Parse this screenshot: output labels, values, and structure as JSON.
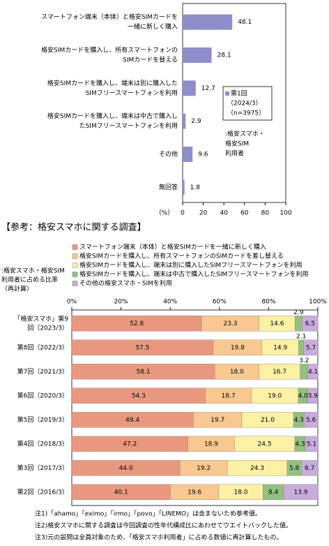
{
  "chart_data": [
    {
      "type": "hbar",
      "categories": [
        [
          "スマートフォン端末（本体）と格安SIMカードを",
          "一緒に新しく購入"
        ],
        [
          "格安SIMカードを購入し、所有スマートフォンの",
          "SIMカードを替える"
        ],
        [
          "格安SIMカードを購入し、端末は別に購入した",
          "SIMフリースマートフォンを利用"
        ],
        [
          "格安SIMカードを購入し、端末は中古で購入し",
          "たSIMフリースマートフォンを利用"
        ],
        [
          "その他"
        ],
        [
          "無回答"
        ]
      ],
      "series": [
        {
          "name": [
            "第1回",
            "（2024/3）",
            "（n=3975）"
          ],
          "color": "#8e8ecb",
          "values": [
            48.1,
            28.1,
            12.7,
            2.9,
            9.6,
            1.8
          ]
        }
      ],
      "annotation": [
        ":格安スマホ・",
        "格安SIM",
        "利用者"
      ],
      "xlabel": "（%）",
      "xlim": [
        0,
        100
      ],
      "xticks": [
        0,
        20,
        40,
        60,
        80,
        100
      ],
      "grid": false
    },
    {
      "type": "stacked-hbar",
      "title": "【参考：格安スマホに関する調査】",
      "ylabel": [
        ":格安スマホ・格安SIM",
        "利用者に占める比率",
        "（再計算）"
      ],
      "categories": [
        [
          "「格安スマホ」第9",
          "回（2023/3）"
        ],
        [
          "第8回（2022/3）"
        ],
        [
          "第7回（2021/3）"
        ],
        [
          "第6回（2020/3）"
        ],
        [
          "第5回（2019/3）"
        ],
        [
          "第4回（2018/3）"
        ],
        [
          "第3回（2017/3）"
        ],
        [
          "第2回（2016/3）"
        ]
      ],
      "series": [
        {
          "name": "スマートフォン端末（本体）と格安SIMカードを一緒に新しく購入",
          "color": "#e99880",
          "values": [
            52.8,
            57.5,
            58.1,
            54.3,
            49.4,
            47.2,
            44.0,
            40.1
          ],
          "value_labels": [
            "52.8",
            "57.5",
            "58.1",
            "54.3",
            "49.4",
            "47.2",
            "44.0",
            "40.1"
          ]
        },
        {
          "name": "格安SIMカードを購入し、所有スマートフォンのSIMカードを差し替える",
          "color": "#f8c890",
          "values": [
            23.3,
            19.8,
            18.0,
            18.7,
            19.7,
            18.9,
            19.2,
            19.6
          ],
          "value_labels": [
            "23.3",
            "19.8",
            "18.0",
            "18.7",
            "19.7",
            "18.9",
            "19.2",
            "19.6"
          ]
        },
        {
          "name": "格安SIMカードを購入し、端末は別に購入したSIMフリースマートフォンを利用",
          "color": "#fcf0a4",
          "values": [
            14.6,
            14.9,
            16.7,
            19.0,
            21.0,
            24.5,
            24.3,
            18.0
          ],
          "value_labels": [
            "14.6",
            "14.9",
            "16.7",
            "19.0",
            "21.0",
            "24.5",
            "24.3",
            "18.0"
          ]
        },
        {
          "name": "格安SIMカードを購入し、端末は中古で購入したSIMフリースマートフォンを利用",
          "color": "#93c07e",
          "values": [
            2.9,
            2.1,
            3.2,
            4.0,
            4.3,
            4.3,
            5.8,
            8.4
          ],
          "value_labels": [
            "2.9",
            "2.1",
            "3.2",
            "4.0",
            "4.3",
            "4.3",
            "5.8",
            "8.4"
          ]
        },
        {
          "name": "その他の格安スマホ・SIMを利用",
          "color": "#c8acdc",
          "values": [
            6.5,
            5.7,
            4.1,
            3.9,
            5.6,
            5.1,
            6.7,
            13.9
          ],
          "value_labels": [
            "6.5",
            "5.7",
            "4.1",
            "3.9",
            "5.6",
            "5.1",
            "6.7",
            "13.9"
          ]
        }
      ],
      "xlim": [
        0,
        100
      ],
      "xticks": [
        {
          "value": 0,
          "label": "0%"
        },
        {
          "value": 20,
          "label": "20%"
        },
        {
          "value": 40,
          "label": "40%"
        },
        {
          "value": 60,
          "label": "60%"
        },
        {
          "value": 80,
          "label": "80%"
        },
        {
          "value": 100,
          "label": "100%"
        }
      ],
      "grid": false,
      "notes": [
        "注1)「ahamo」「eximo」「irmo」「povo」「LINEMO」は含まないため参考値。",
        "注2)格安スマホに関する調査は今回調査の性年代構成比にあわせてウエイトバックした値。",
        "注3)元の設問は全員対象のため、「格安スマホ利用者」に占める数値に再計算したもの。"
      ]
    }
  ]
}
